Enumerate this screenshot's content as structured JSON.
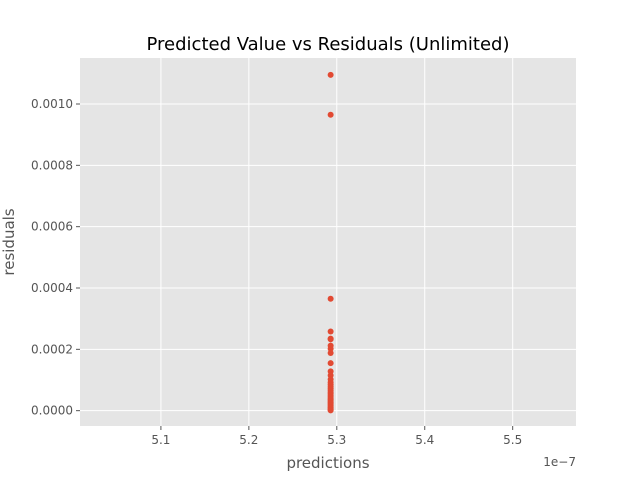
{
  "chart_data": {
    "type": "scatter",
    "title": "Predicted Value vs Residuals (Unlimited)",
    "xlabel": "predictions",
    "ylabel": "residuals",
    "x_offset_label": "1e−7",
    "x_scale": 1e-07,
    "xlim": [
      5.008e-07,
      5.572e-07
    ],
    "ylim": [
      -5e-05,
      0.00115
    ],
    "x_ticks": [
      5.1e-07,
      5.2e-07,
      5.3e-07,
      5.4e-07,
      5.5e-07
    ],
    "x_tick_labels": [
      "5.1",
      "5.2",
      "5.3",
      "5.4",
      "5.5"
    ],
    "y_ticks": [
      0.0,
      0.0002,
      0.0004,
      0.0006,
      0.0008,
      0.001
    ],
    "y_tick_labels": [
      "0.0000",
      "0.0002",
      "0.0004",
      "0.0006",
      "0.0008",
      "0.0010"
    ],
    "grid": true,
    "legend": "none",
    "point_color": "#E24A33",
    "background_color": "#E5E5E5",
    "series": [
      {
        "points": [
          {
            "x": 5.293e-07,
            "y": 0.001095
          },
          {
            "x": 5.293e-07,
            "y": 0.000965
          },
          {
            "x": 5.293e-07,
            "y": 0.000365
          },
          {
            "x": 5.293e-07,
            "y": 0.000258
          },
          {
            "x": 5.293e-07,
            "y": 0.000235
          },
          {
            "x": 5.293e-07,
            "y": 0.000233
          },
          {
            "x": 5.293e-07,
            "y": 0.000212
          },
          {
            "x": 5.293e-07,
            "y": 0.000202
          },
          {
            "x": 5.293e-07,
            "y": 0.000188
          },
          {
            "x": 5.293e-07,
            "y": 0.000155
          },
          {
            "x": 5.293e-07,
            "y": 0.000128
          },
          {
            "x": 5.293e-07,
            "y": 0.000115
          },
          {
            "x": 5.293e-07,
            "y": 0.000102
          },
          {
            "x": 5.293e-07,
            "y": 9.2e-05
          },
          {
            "x": 5.293e-07,
            "y": 8.5e-05
          },
          {
            "x": 5.293e-07,
            "y": 7.8e-05
          },
          {
            "x": 5.293e-07,
            "y": 7.2e-05
          },
          {
            "x": 5.293e-07,
            "y": 6.6e-05
          },
          {
            "x": 5.293e-07,
            "y": 6e-05
          },
          {
            "x": 5.293e-07,
            "y": 5.5e-05
          },
          {
            "x": 5.293e-07,
            "y": 5e-05
          },
          {
            "x": 5.293e-07,
            "y": 4.5e-05
          },
          {
            "x": 5.293e-07,
            "y": 4e-05
          },
          {
            "x": 5.293e-07,
            "y": 3.6e-05
          },
          {
            "x": 5.293e-07,
            "y": 3.2e-05
          },
          {
            "x": 5.293e-07,
            "y": 2.8e-05
          },
          {
            "x": 5.293e-07,
            "y": 2.4e-05
          },
          {
            "x": 5.293e-07,
            "y": 2e-05
          },
          {
            "x": 5.293e-07,
            "y": 1.6e-05
          },
          {
            "x": 5.293e-07,
            "y": 1.2e-05
          },
          {
            "x": 5.293e-07,
            "y": 9e-06
          },
          {
            "x": 5.293e-07,
            "y": 6e-06
          },
          {
            "x": 5.293e-07,
            "y": 3e-06
          },
          {
            "x": 5.293e-07,
            "y": 1e-06
          }
        ]
      }
    ]
  }
}
